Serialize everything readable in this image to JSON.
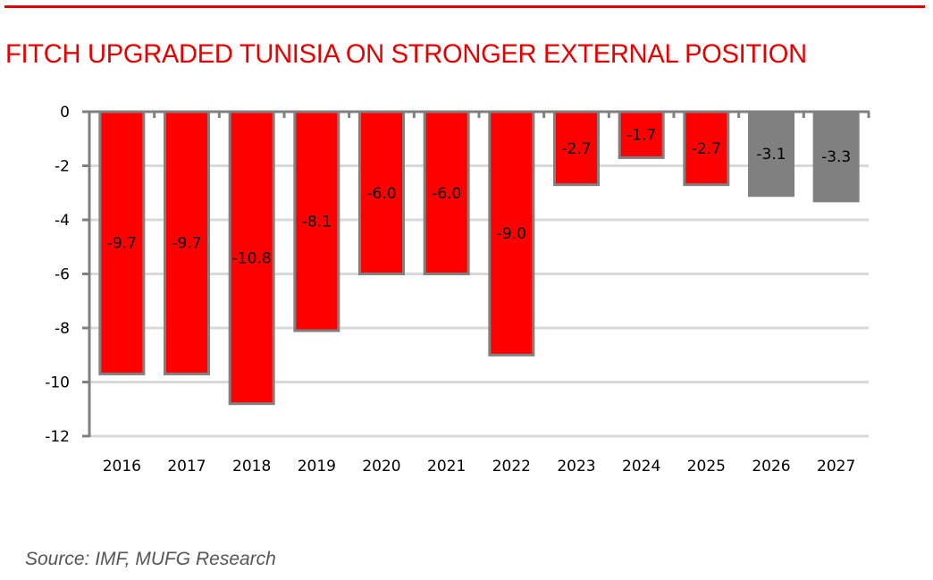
{
  "header": {
    "title": "FITCH UPGRADED TUNISIA ON STRONGER EXTERNAL POSITION"
  },
  "footer": {
    "source": "Source: IMF,  MUFG Research"
  },
  "colors": {
    "accent": "#e00000",
    "actual_bar": "#ff0000",
    "forecast_bar": "#808080",
    "bar_outline": "#808080",
    "gridline": "#d9d9d9",
    "axis": "#808080"
  },
  "chart_data": {
    "type": "bar",
    "title": "FITCH UPGRADED TUNISIA ON STRONGER EXTERNAL POSITION",
    "xlabel": "",
    "ylabel": "",
    "categories": [
      "2016",
      "2017",
      "2018",
      "2019",
      "2020",
      "2021",
      "2022",
      "2023",
      "2024",
      "2025",
      "2026",
      "2027"
    ],
    "values": [
      -9.7,
      -9.7,
      -10.8,
      -8.1,
      -6.0,
      -6.0,
      -9.0,
      -2.7,
      -1.7,
      -2.7,
      -3.1,
      -3.3
    ],
    "labels": [
      "-9.7",
      "-9.7",
      "-10.8",
      "-8.1",
      "-6.0",
      "-6.0",
      "-9.0",
      "-2.7",
      "-1.7",
      "-2.7",
      "-3.1",
      "-3.3"
    ],
    "bar_kind": [
      "actual",
      "actual",
      "actual",
      "actual",
      "actual",
      "actual",
      "actual",
      "actual",
      "actual",
      "actual",
      "forecast",
      "forecast"
    ],
    "ylim": [
      -12,
      0
    ],
    "yticks": [
      0,
      -2,
      -4,
      -6,
      -8,
      -10,
      -12
    ],
    "ytick_labels": [
      "0",
      "-2",
      "-4",
      "-6",
      "-8",
      "-10",
      "-12"
    ],
    "grid": true,
    "legend": "none",
    "source": "Source: IMF,  MUFG Research"
  }
}
